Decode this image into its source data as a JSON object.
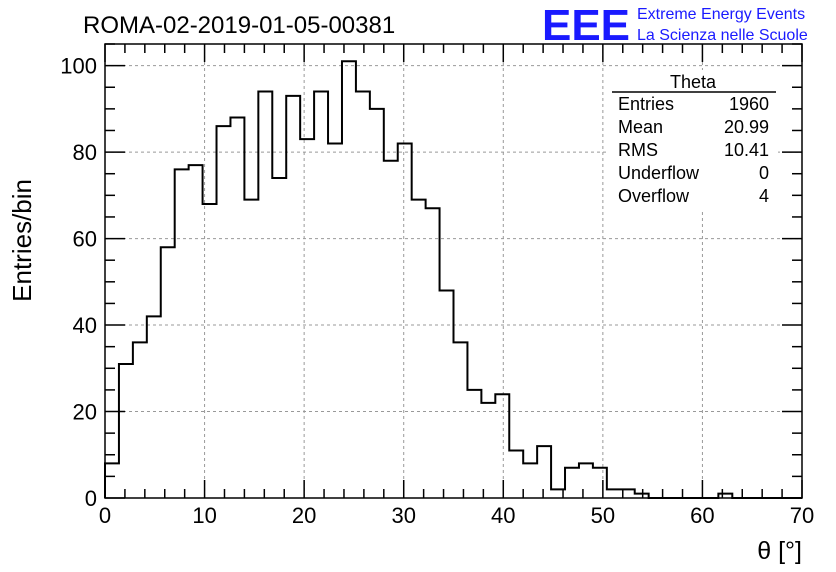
{
  "chart_data": {
    "type": "histogram",
    "title": "ROMA-02-2019-01-05-00381",
    "xlabel": "θ [°]",
    "ylabel": "Entries/bin",
    "xlim": [
      0,
      70
    ],
    "ylim": [
      0,
      105
    ],
    "bin_width": 1.4,
    "x_ticks": [
      0,
      10,
      20,
      30,
      40,
      50,
      60,
      70
    ],
    "x_tick_labels": [
      "0",
      "10",
      "20",
      "30",
      "40",
      "50",
      "60",
      "70"
    ],
    "y_ticks": [
      0,
      20,
      40,
      60,
      80,
      100
    ],
    "y_tick_labels": [
      "0",
      "20",
      "40",
      "60",
      "80",
      "100"
    ],
    "grid": true,
    "values": [
      8,
      31,
      36,
      42,
      58,
      76,
      77,
      68,
      86,
      88,
      69,
      94,
      74,
      93,
      83,
      94,
      82,
      101,
      94,
      90,
      78,
      82,
      69,
      67,
      48,
      36,
      25,
      22,
      24,
      11,
      8,
      12,
      2,
      7,
      8,
      7,
      2,
      2,
      1,
      0,
      0,
      0,
      0,
      0,
      1,
      0,
      0,
      0,
      0,
      0
    ],
    "stats": {
      "title": "Theta",
      "rows": [
        {
          "label": "Entries",
          "value": "1960"
        },
        {
          "label": "Mean",
          "value": "20.99"
        },
        {
          "label": "RMS",
          "value": "10.41"
        },
        {
          "label": "Underflow",
          "value": "0"
        },
        {
          "label": "Overflow",
          "value": "4"
        }
      ]
    }
  },
  "logo": {
    "mark": "EEE",
    "line1": "Extreme Energy Events",
    "line2": "La Scienza nelle Scuole"
  },
  "colors": {
    "histogram": "#000000",
    "grid": "#999999",
    "logo": "#1a1aff"
  }
}
